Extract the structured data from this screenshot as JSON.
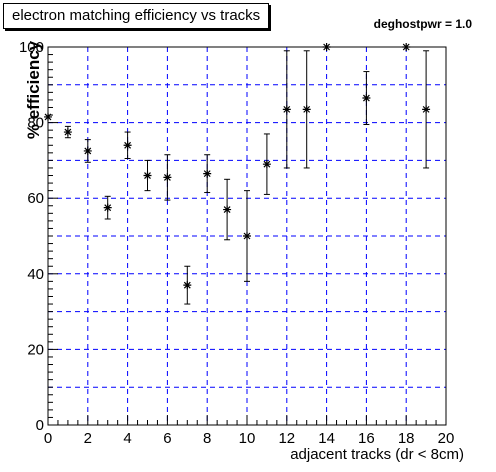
{
  "chart_data": {
    "type": "scatter",
    "title": "electron matching efficiency vs tracks",
    "annotation": "deghostpwr = 1.0",
    "xlabel": "adjacent tracks (dr < 8cm)",
    "ylabel": "% efficiency",
    "xlim": [
      0,
      20
    ],
    "ylim": [
      0,
      100
    ],
    "xticks": [
      0,
      2,
      4,
      6,
      8,
      10,
      12,
      14,
      16,
      18,
      20
    ],
    "yticks": [
      0,
      20,
      40,
      60,
      80,
      100
    ],
    "grid": true,
    "points": [
      {
        "x": 0,
        "y": 81.5,
        "err_low": 0,
        "err_high": 0
      },
      {
        "x": 1,
        "y": 77.5,
        "err_low": 1.5,
        "err_high": 1.5
      },
      {
        "x": 2,
        "y": 72.5,
        "err_low": 3,
        "err_high": 3
      },
      {
        "x": 3,
        "y": 57.5,
        "err_low": 3,
        "err_high": 3
      },
      {
        "x": 4,
        "y": 74,
        "err_low": 3.5,
        "err_high": 3.5
      },
      {
        "x": 5,
        "y": 66,
        "err_low": 4,
        "err_high": 4
      },
      {
        "x": 6,
        "y": 65.5,
        "err_low": 6,
        "err_high": 6
      },
      {
        "x": 7,
        "y": 37,
        "err_low": 5,
        "err_high": 5
      },
      {
        "x": 8,
        "y": 66.5,
        "err_low": 5,
        "err_high": 5
      },
      {
        "x": 9,
        "y": 57,
        "err_low": 8,
        "err_high": 8
      },
      {
        "x": 10,
        "y": 50,
        "err_low": 12,
        "err_high": 12
      },
      {
        "x": 11,
        "y": 69,
        "err_low": 8,
        "err_high": 8
      },
      {
        "x": 12,
        "y": 83.5,
        "err_low": 15.5,
        "err_high": 15.5
      },
      {
        "x": 13,
        "y": 83.5,
        "err_low": 15.5,
        "err_high": 15.5
      },
      {
        "x": 14,
        "y": 100,
        "err_low": 0,
        "err_high": 0
      },
      {
        "x": 16,
        "y": 86.5,
        "err_low": 7,
        "err_high": 7
      },
      {
        "x": 18,
        "y": 100,
        "err_low": 0,
        "err_high": 0
      },
      {
        "x": 19,
        "y": 83.5,
        "err_low": 15.5,
        "err_high": 15.5
      }
    ],
    "colors": {
      "grid": "#0000ff",
      "marker": "#000000",
      "axis": "#000000"
    }
  }
}
